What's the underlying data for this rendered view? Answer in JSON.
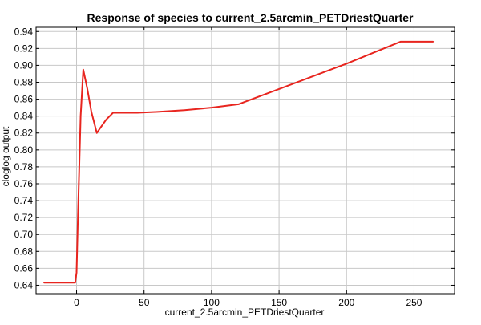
{
  "chart_data": {
    "type": "line",
    "title": "Response of species to current_2.5arcmin_PETDriestQuarter",
    "xlabel": "current_2.5arcmin_PETDriestQuarter",
    "ylabel": "cloglog output",
    "xlim": [
      -30,
      280
    ],
    "ylim": [
      0.63,
      0.945
    ],
    "x_ticks": [
      0,
      50,
      100,
      150,
      200,
      250
    ],
    "y_ticks": [
      0.64,
      0.66,
      0.68,
      0.7,
      0.72,
      0.74,
      0.76,
      0.78,
      0.8,
      0.82,
      0.84,
      0.86,
      0.88,
      0.9,
      0.92,
      0.94
    ],
    "grid": true,
    "legend": "none",
    "series": [
      {
        "color": "#e8251f",
        "x": [
          -24,
          -1,
          0,
          1,
          3,
          5,
          8,
          11,
          15,
          18,
          22,
          27,
          45,
          60,
          80,
          100,
          110,
          120,
          125,
          150,
          175,
          200,
          220,
          240,
          264
        ],
        "y": [
          0.643,
          0.643,
          0.655,
          0.72,
          0.84,
          0.895,
          0.872,
          0.845,
          0.82,
          0.827,
          0.836,
          0.844,
          0.844,
          0.845,
          0.847,
          0.85,
          0.852,
          0.854,
          0.857,
          0.872,
          0.887,
          0.902,
          0.915,
          0.928,
          0.928
        ]
      }
    ]
  }
}
